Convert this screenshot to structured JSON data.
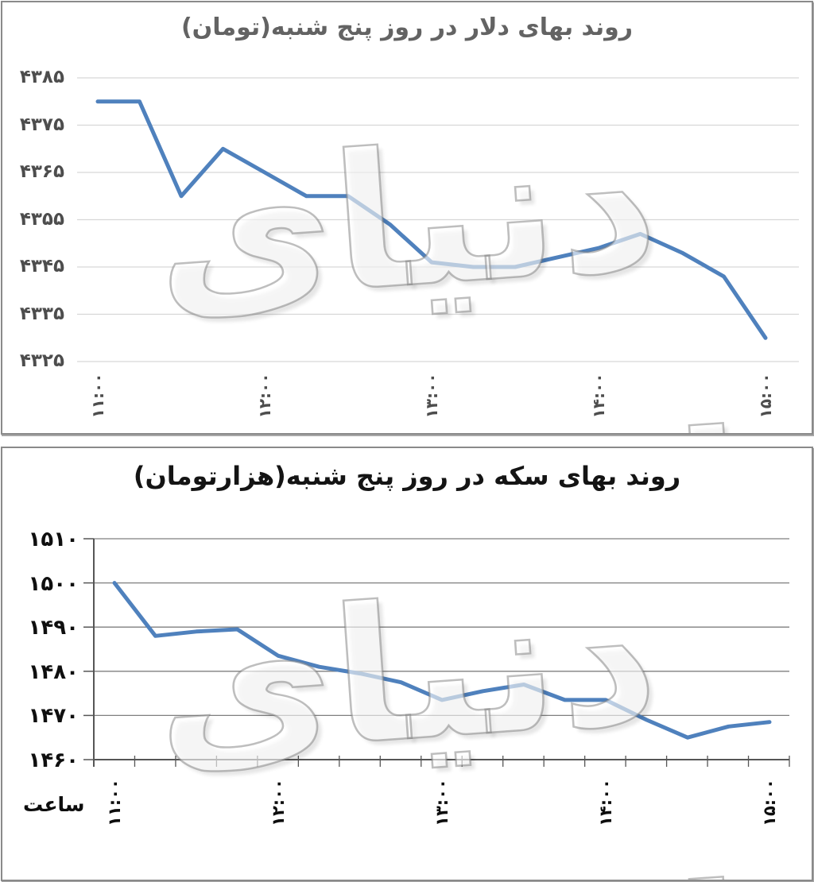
{
  "watermark": {
    "text": "دنیای اقتصاد"
  },
  "chart_data": [
    {
      "type": "line",
      "title": "روند بهای دلار در روز پنج شنبه(تومان)",
      "xlabel": "",
      "ylabel": "",
      "x": [
        "11:00",
        "11:15",
        "11:30",
        "11:45",
        "12:00",
        "12:15",
        "12:30",
        "12:45",
        "13:00",
        "13:15",
        "13:30",
        "13:45",
        "14:00",
        "14:15",
        "14:30",
        "14:45",
        "15:00"
      ],
      "values": [
        4380,
        4380,
        4360,
        4370,
        4365,
        4360,
        4360,
        4354,
        4346,
        4345,
        4345,
        4347,
        4349,
        4352,
        4348,
        4343,
        4330
      ],
      "x_tick_labels": [
        "۱۱:۰۰",
        "۱۲:۰۰",
        "۱۳:۰۰",
        "۱۴:۰۰",
        "۱۵:۰۰"
      ],
      "x_tick_every": 4,
      "y_tick_labels": [
        "۴۳۸۵",
        "۴۳۷۵",
        "۴۳۶۵",
        "۴۳۵۵",
        "۴۳۴۵",
        "۴۳۳۵",
        "۴۳۲۵"
      ],
      "ylim": [
        4325,
        4385
      ],
      "y_step": 10,
      "grid": true,
      "legend": "none",
      "line_color": "#4f81bd",
      "grid_color": "#d7d7d7",
      "axis_color": "#d7d7d7",
      "label_color": "#4d4d4d",
      "title_color": "#636363"
    },
    {
      "type": "line",
      "title": "روند بهای سکه در روز پنج شنبه(هزارتومان)",
      "xlabel": "ساعت",
      "ylabel": "",
      "x": [
        "11:00",
        "11:15",
        "11:30",
        "11:45",
        "12:00",
        "12:15",
        "12:30",
        "12:45",
        "13:00",
        "13:15",
        "13:30",
        "13:45",
        "14:00",
        "14:15",
        "14:30",
        "14:45",
        "15:00"
      ],
      "values": [
        1500,
        1488,
        1489,
        1489.5,
        1483.5,
        1481,
        1479.5,
        1477.5,
        1473.5,
        1475.5,
        1477,
        1473.5,
        1473.5,
        1469,
        1465,
        1467.5,
        1468.5
      ],
      "x_tick_labels": [
        "۱۱:۰۰",
        "۱۲:۰۰",
        "۱۳:۰۰",
        "۱۴:۰۰",
        "۱۵:۰۰"
      ],
      "x_tick_every": 4,
      "y_tick_labels": [
        "۱۵۱۰",
        "۱۵۰۰",
        "۱۴۹۰",
        "۱۴۸۰",
        "۱۴۷۰",
        "۱۴۶۰"
      ],
      "ylim": [
        1460,
        1510
      ],
      "y_step": 10,
      "grid": true,
      "legend": "none",
      "line_color": "#4f81bd",
      "grid_color": "#7f7f7f",
      "axis_color": "#565656",
      "label_color": "#0f0f0f",
      "title_color": "#141414"
    }
  ]
}
